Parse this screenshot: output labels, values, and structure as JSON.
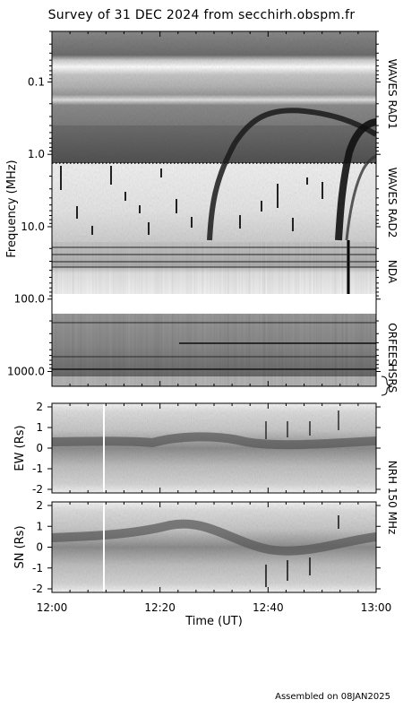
{
  "title": "Survey of 31 DEC 2024 from secchirh.obspm.fr",
  "footer": "Assembled on 08JAN2025",
  "chart_data": {
    "type": "heatmap",
    "title": "Survey of 31 DEC 2024 from secchirh.obspm.fr",
    "x": {
      "label": "Time (UT)",
      "ticks": [
        "12:00",
        "12:20",
        "12:40",
        "13:00"
      ],
      "range": [
        "12:00",
        "13:00"
      ]
    },
    "panels": [
      {
        "name": "spectrum",
        "ylabel": "Frequency (MHz)",
        "yscale": "log",
        "ylim": [
          0.02,
          1600
        ],
        "yticks": [
          "0.1",
          "1.0",
          "10.0",
          "100.0",
          "1000.0"
        ],
        "instruments": [
          "WAVES RAD1",
          "WAVES RAD2",
          "NDA",
          "ORFEES",
          "HSRS"
        ]
      },
      {
        "name": "ew",
        "ylabel": "EW (Rs)",
        "ylim": [
          -2,
          2
        ],
        "yticks": [
          "2",
          "1",
          "0",
          "-1",
          "-2"
        ]
      },
      {
        "name": "sn",
        "ylabel": "SN (Rs)",
        "ylim": [
          -2,
          2
        ],
        "yticks": [
          "2",
          "1",
          "0",
          "-1",
          "-2"
        ]
      }
    ],
    "side_label_nrh": "NRH 150 MHz",
    "grid": false
  }
}
